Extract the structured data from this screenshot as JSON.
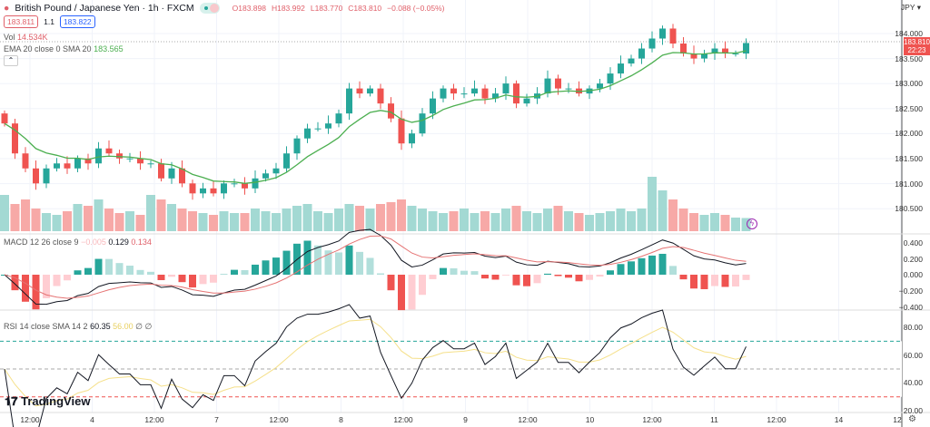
{
  "header": {
    "symbol": "British Pound / Japanese Yen · 1h · FXCM",
    "open": "O183.898",
    "high": "H183.992",
    "low": "L183.770",
    "close": "C183.810",
    "change": "−0.088 (−0.05%)",
    "bid": "183.811",
    "spread": "1.1",
    "ask": "183.822",
    "currency": "JPY"
  },
  "volume": {
    "label": "Vol",
    "value": "14.534K"
  },
  "ema": {
    "label": "EMA 20 close 0 SMA 20",
    "value": "183.565"
  },
  "macd": {
    "label": "MACD 12 26 close 9",
    "hist": "−0.005",
    "macd": "0.129",
    "signal": "0.134"
  },
  "rsi": {
    "label": "RSI 14 close SMA 14 2",
    "value": "60.35",
    "sma": "56.00",
    "extra": "∅ ∅"
  },
  "price_tag": {
    "price": "183.810",
    "countdown": "22:23"
  },
  "price_axis": [
    "184.000",
    "183.500",
    "183.000",
    "182.500",
    "182.000",
    "181.500",
    "181.000",
    "180.500"
  ],
  "macd_axis": [
    "0.400",
    "0.200",
    "0.000",
    "−0.200",
    "−0.400"
  ],
  "rsi_axis": [
    "80.00",
    "60.00",
    "40.00",
    "20.00"
  ],
  "time_axis": [
    "12:00",
    "4",
    "12:00",
    "7",
    "12:00",
    "8",
    "12:00",
    "9",
    "12:00",
    "10",
    "12:00",
    "11",
    "12:00",
    "14",
    "12"
  ],
  "brand": "TradingView",
  "colors": {
    "up": "#26a69a",
    "down": "#ef5350",
    "ema": "#4caf50",
    "rsi": "#131722",
    "rsi_sma": "#f5e08a"
  },
  "chart_data": {
    "type": "candlestick",
    "title": "British Pound / Japanese Yen · 1h · FXCM",
    "ylim": [
      180.2,
      184.3
    ],
    "closes": [
      182.2,
      181.6,
      181.3,
      181.0,
      181.3,
      181.4,
      181.3,
      181.5,
      181.4,
      181.7,
      181.6,
      181.5,
      181.5,
      181.4,
      181.4,
      181.1,
      181.3,
      181.0,
      180.8,
      180.9,
      180.8,
      181.0,
      181.0,
      180.9,
      181.1,
      181.2,
      181.3,
      181.6,
      181.9,
      182.1,
      182.1,
      182.2,
      182.4,
      182.9,
      182.8,
      182.9,
      182.6,
      182.3,
      181.8,
      182.0,
      182.4,
      182.7,
      182.9,
      182.8,
      182.8,
      182.9,
      182.7,
      182.8,
      183.0,
      182.6,
      182.7,
      182.8,
      183.1,
      182.9,
      182.9,
      182.8,
      182.9,
      183.0,
      183.2,
      183.4,
      183.5,
      183.7,
      183.9,
      184.1,
      183.8,
      183.6,
      183.5,
      183.6,
      183.7,
      183.6,
      183.6,
      183.81
    ],
    "volumes": [
      40,
      30,
      35,
      25,
      20,
      18,
      22,
      30,
      28,
      35,
      25,
      20,
      22,
      18,
      40,
      35,
      30,
      25,
      22,
      20,
      18,
      22,
      20,
      20,
      25,
      22,
      20,
      25,
      28,
      30,
      22,
      20,
      25,
      30,
      28,
      25,
      30,
      32,
      35,
      28,
      25,
      22,
      20,
      22,
      25,
      20,
      22,
      20,
      25,
      28,
      22,
      20,
      25,
      28,
      22,
      20,
      18,
      20,
      22,
      25,
      22,
      25,
      60,
      45,
      35,
      25,
      20,
      18,
      20,
      18,
      15,
      14.5
    ]
  }
}
